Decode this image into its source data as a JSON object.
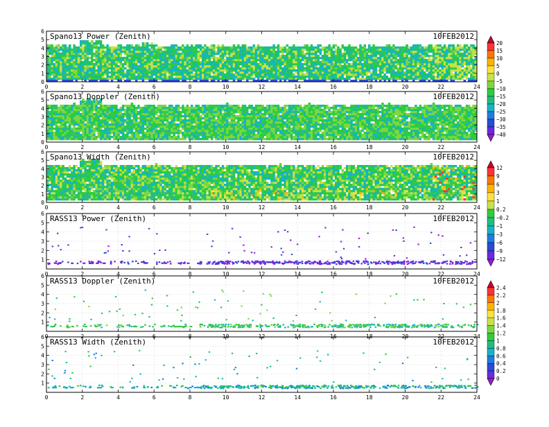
{
  "chart_data": [
    {
      "type": "heatmap",
      "title": "Spano13 Power (Zenith)",
      "date": "10FEB2012",
      "xlim": [
        0,
        24
      ],
      "ylim": [
        0,
        6
      ],
      "x_ticks": [
        "0",
        "2",
        "4",
        "6",
        "8",
        "10",
        "12",
        "14",
        "16",
        "18",
        "20",
        "22",
        "24"
      ],
      "y_ticks": [
        "0",
        "1",
        "2",
        "3",
        "4",
        "5",
        "6"
      ],
      "coverage": "dense",
      "data_top_km": 4.2,
      "dominant": "green-cyan"
    },
    {
      "type": "heatmap",
      "title": "Spano13 Doppler (Zenith)",
      "date": "10FEB2012",
      "xlim": [
        0,
        24
      ],
      "ylim": [
        0,
        6
      ],
      "x_ticks": [
        "0",
        "2",
        "4",
        "6",
        "8",
        "10",
        "12",
        "14",
        "16",
        "18",
        "20",
        "22",
        "24"
      ],
      "y_ticks": [
        "0",
        "1",
        "2",
        "3",
        "4",
        "5",
        "6"
      ],
      "coverage": "dense",
      "data_top_km": 4.3,
      "dominant": "green"
    },
    {
      "type": "heatmap",
      "title": "Spano13 Width (Zenith)",
      "date": "10FEB2012",
      "xlim": [
        0,
        24
      ],
      "ylim": [
        0,
        6
      ],
      "x_ticks": [
        "0",
        "2",
        "4",
        "6",
        "8",
        "10",
        "12",
        "14",
        "16",
        "18",
        "20",
        "22",
        "24"
      ],
      "y_ticks": [
        "0",
        "1",
        "2",
        "3",
        "4",
        "5",
        "6"
      ],
      "coverage": "dense",
      "data_top_km": 4.3,
      "dominant": "green-yellow"
    },
    {
      "type": "heatmap",
      "title": "RASS13 Power (Zenith)",
      "date": "10FEB2012",
      "xlim": [
        0,
        24
      ],
      "ylim": [
        0,
        6
      ],
      "x_ticks": [
        "0",
        "2",
        "4",
        "6",
        "8",
        "10",
        "12",
        "14",
        "16",
        "18",
        "20",
        "22",
        "24"
      ],
      "y_ticks": [
        "1",
        "2",
        "3",
        "4",
        "5",
        "6"
      ],
      "coverage": "sparse",
      "data_band_km": 0.7,
      "dominant": "purple"
    },
    {
      "type": "heatmap",
      "title": "RASS13 Doppler (Zenith)",
      "date": "10FEB2012",
      "xlim": [
        0,
        24
      ],
      "ylim": [
        0,
        6
      ],
      "x_ticks": [
        "0",
        "2",
        "4",
        "6",
        "8",
        "10",
        "12",
        "14",
        "16",
        "18",
        "20",
        "22",
        "24"
      ],
      "y_ticks": [
        "1",
        "2",
        "3",
        "4",
        "5",
        "6"
      ],
      "coverage": "sparse",
      "data_band_km": 0.6,
      "dominant": "green"
    },
    {
      "type": "heatmap",
      "title": "RASS13 Width (Zenith)",
      "date": "10FEB2012",
      "xlim": [
        0,
        24
      ],
      "ylim": [
        0,
        6
      ],
      "x_ticks": [
        "0",
        "2",
        "4",
        "6",
        "8",
        "10",
        "12",
        "14",
        "16",
        "18",
        "20",
        "22",
        "24"
      ],
      "y_ticks": [
        "1",
        "2",
        "3",
        "4",
        "5",
        "6"
      ],
      "coverage": "sparse",
      "data_band_km": 0.6,
      "dominant": "cyan-green"
    }
  ],
  "colorbars": [
    {
      "labels": [
        "20",
        "15",
        "10",
        "5",
        "0",
        "−5",
        "−10",
        "−15",
        "−20",
        "−25",
        "−30",
        "−35",
        "−40"
      ],
      "colors": [
        "#cc0033",
        "#ff3333",
        "#ff7700",
        "#ffb300",
        "#ffe23a",
        "#c8e24a",
        "#7dd840",
        "#2ecc40",
        "#1fbf7a",
        "#17b3c8",
        "#1a7fe0",
        "#2a4ad8",
        "#6a2ae0",
        "#9a1ad0"
      ]
    },
    {
      "labels": [
        "12",
        "9",
        "6",
        "3",
        "1",
        "0.2",
        "−0.2",
        "−1",
        "−3",
        "−6",
        "−9",
        "−12"
      ],
      "colors": [
        "#cc0033",
        "#ff3333",
        "#ff7700",
        "#ffb300",
        "#ffe23a",
        "#c8e24a",
        "#2ecc40",
        "#1fbf7a",
        "#17b3c8",
        "#1a7fe0",
        "#2a4ad8",
        "#6a2ae0",
        "#9a1ad0"
      ]
    },
    {
      "labels": [
        "2.4",
        "2.2",
        "2",
        "1.8",
        "1.6",
        "1.4",
        "1.2",
        "1",
        "0.8",
        "0.6",
        "0.4",
        "0.2",
        "0"
      ],
      "colors": [
        "#cc0033",
        "#ff3333",
        "#ff7700",
        "#ffb300",
        "#ffe23a",
        "#c8e24a",
        "#7dd840",
        "#2ecc40",
        "#1fbf7a",
        "#17b3c8",
        "#1a7fe0",
        "#2a4ad8",
        "#6a2ae0",
        "#9a1ad0"
      ]
    }
  ]
}
